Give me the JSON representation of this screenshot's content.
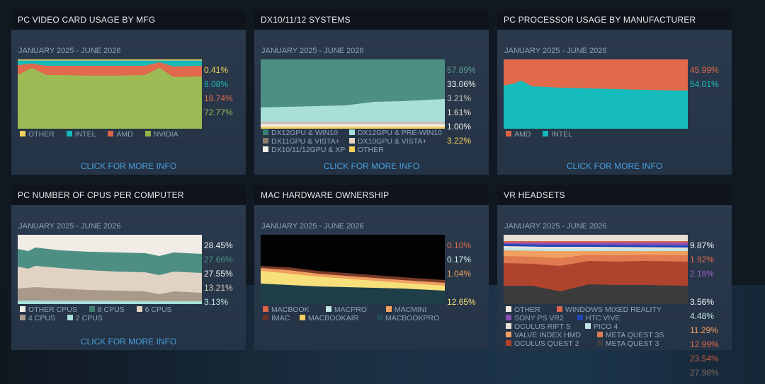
{
  "panels": {
    "video": {
      "title": "PC VIDEO CARD USAGE BY MFG",
      "date_range": "JANUARY 2025 - JUNE 2026",
      "percents": [
        {
          "value": "0.41%",
          "color": "#f3d05d"
        },
        {
          "value": "8.08%",
          "color": "#1bb8b8"
        },
        {
          "value": "18.74%",
          "color": "#e06a4b"
        },
        {
          "value": "72.77%",
          "color": "#9dbb55"
        }
      ],
      "legend": [
        {
          "label": "OTHER",
          "color": "#f3d05d"
        },
        {
          "label": "INTEL",
          "color": "#16b7b8"
        },
        {
          "label": "AMD",
          "color": "#d9644a"
        },
        {
          "label": "NVIDIA",
          "color": "#93b34b"
        }
      ],
      "more": "CLICK FOR MORE INFO"
    },
    "dx": {
      "title": "DX10/11/12 SYSTEMS",
      "date_range": "JANUARY 2025 - JUNE 2026",
      "percents": [
        {
          "value": "57.89%",
          "color": "#5d9d92"
        },
        {
          "value": "33.06%",
          "color": "#e8f2f0"
        },
        {
          "value": "3.21%",
          "color": "#c8bfb6"
        },
        {
          "value": "1.61%",
          "color": "#e8e2da"
        },
        {
          "value": "1.00%",
          "color": "#f5f2ee"
        },
        {
          "value": "3.22%",
          "color": "#f3d05d"
        }
      ],
      "legend_rows": [
        [
          {
            "label": "DX12GPU & WIN10",
            "color": "#3f7f74"
          },
          {
            "label": "DX12GPU & PRE-WIN10",
            "color": "#a9dfd9"
          }
        ],
        [
          {
            "label": "DX11GPU & VISTA+",
            "color": "#8c7d6f"
          },
          {
            "label": "DX10GPU & VISTA+",
            "color": "#e3d6c6"
          }
        ],
        [
          {
            "label": "DX10/11/12GPU & XP",
            "color": "#f4efe8"
          },
          {
            "label": "OTHER",
            "color": "#f3d05d"
          }
        ]
      ],
      "more": "CLICK FOR MORE INFO"
    },
    "cpu": {
      "title": "PC PROCESSOR USAGE BY MANUFACTURER",
      "date_range": "JANUARY 2025 - JUNE 2026",
      "percents": [
        {
          "value": "45.99%",
          "color": "#e06a4b"
        },
        {
          "value": "54.01%",
          "color": "#1bbfbf"
        }
      ],
      "legend": [
        {
          "label": "AMD",
          "color": "#d9644a"
        },
        {
          "label": "INTEL",
          "color": "#16b7b8"
        }
      ],
      "more": "CLICK FOR MORE INFO"
    },
    "ncpu": {
      "title": "PC NUMBER OF CPUS PER COMPUTER",
      "date_range": "JANUARY 2025 - JUNE 2026",
      "percents": [
        {
          "value": "28.45%",
          "color": "#f1f4f6"
        },
        {
          "value": "27.66%",
          "color": "#4e8f84"
        },
        {
          "value": "27.55%",
          "color": "#f1f4f6"
        },
        {
          "value": "13.21%",
          "color": "#d4c8bc"
        },
        {
          "value": "3.13%",
          "color": "#bfe6e3"
        }
      ],
      "legend_rows": [
        [
          {
            "label": "OTHER CPUS",
            "color": "#f1ece6"
          },
          {
            "label": "8 CPUS",
            "color": "#3f7f74"
          },
          {
            "label": "6 CPUS",
            "color": "#e1d3c4"
          }
        ],
        [
          {
            "label": "4 CPUS",
            "color": "#a8998b"
          },
          {
            "label": "2 CPUS",
            "color": "#a9dfd9"
          }
        ]
      ],
      "more": "CLICK FOR MORE INFO"
    },
    "mac": {
      "title": "MAC HARDWARE OWNERSHIP",
      "date_range": "JANUARY 2025 - JUNE 2026",
      "percents": [
        {
          "value": "0.10%",
          "color": "#e06a4b"
        },
        {
          "value": "0.17%",
          "color": "#d6eeec"
        },
        {
          "value": "1.04%",
          "color": "#f0a060"
        },
        {
          "value": "",
          "color": "#a0533f"
        },
        {
          "value": "12.65%",
          "color": "#f7e07a"
        },
        {
          "value": "",
          "color": "#2f5f66"
        }
      ],
      "legend_rows": [
        [
          {
            "label": "MACBOOK",
            "color": "#d9644a"
          },
          {
            "label": "MACPRO",
            "color": "#bfe6e3"
          },
          {
            "label": "MACMINI",
            "color": "#f0a060"
          }
        ],
        [
          {
            "label": "IMAC",
            "color": "#6b3325"
          },
          {
            "label": "MACBOOKAIR",
            "color": "#f3d05d"
          },
          {
            "label": "MACBOOKPRO",
            "color": "#244b55"
          }
        ]
      ]
    },
    "vr": {
      "title": "VR HEADSETS",
      "date_range": "JANUARY 2025 - JUNE 2026",
      "percents": [
        {
          "value": "9.87%",
          "color": "#f1f4f6"
        },
        {
          "value": "1.92%",
          "color": "#e06a4b"
        },
        {
          "value": "2.18%",
          "color": "#9b5fc0"
        },
        {
          "value": "",
          "color": "#2a55c8"
        },
        {
          "value": "3.56%",
          "color": "#f1f4f6"
        },
        {
          "value": "4.48%",
          "color": "#bfe6e3"
        },
        {
          "value": "11.29%",
          "color": "#f3a060"
        },
        {
          "value": "12.99%",
          "color": "#e06a4b"
        },
        {
          "value": "23.54%",
          "color": "#c45a3f"
        },
        {
          "value": "27.98%",
          "color": "#7a6a60"
        }
      ],
      "legend_rows": [
        [
          {
            "label": "OTHER",
            "color": "#f1ece6"
          },
          {
            "label": "WINDOWS MIXED REALITY",
            "color": "#d9644a"
          }
        ],
        [
          {
            "label": "SONY PS VR2",
            "color": "#8e4fb3"
          },
          {
            "label": "HTC VIVE",
            "color": "#2147b8"
          }
        ],
        [
          {
            "label": "OCULUS RIFT S",
            "color": "#e8e2da"
          },
          {
            "label": "PICO 4",
            "color": "#bfe6e3"
          }
        ],
        [
          {
            "label": "VALVE INDEX HMD",
            "color": "#f0a060"
          },
          {
            "label": "META QUEST 3S",
            "color": "#e07a50"
          }
        ],
        [
          {
            "label": "OCULUS QUEST 2",
            "color": "#b0432e"
          },
          {
            "label": "META QUEST 3",
            "color": "#3e3e3e"
          }
        ]
      ]
    }
  }
}
